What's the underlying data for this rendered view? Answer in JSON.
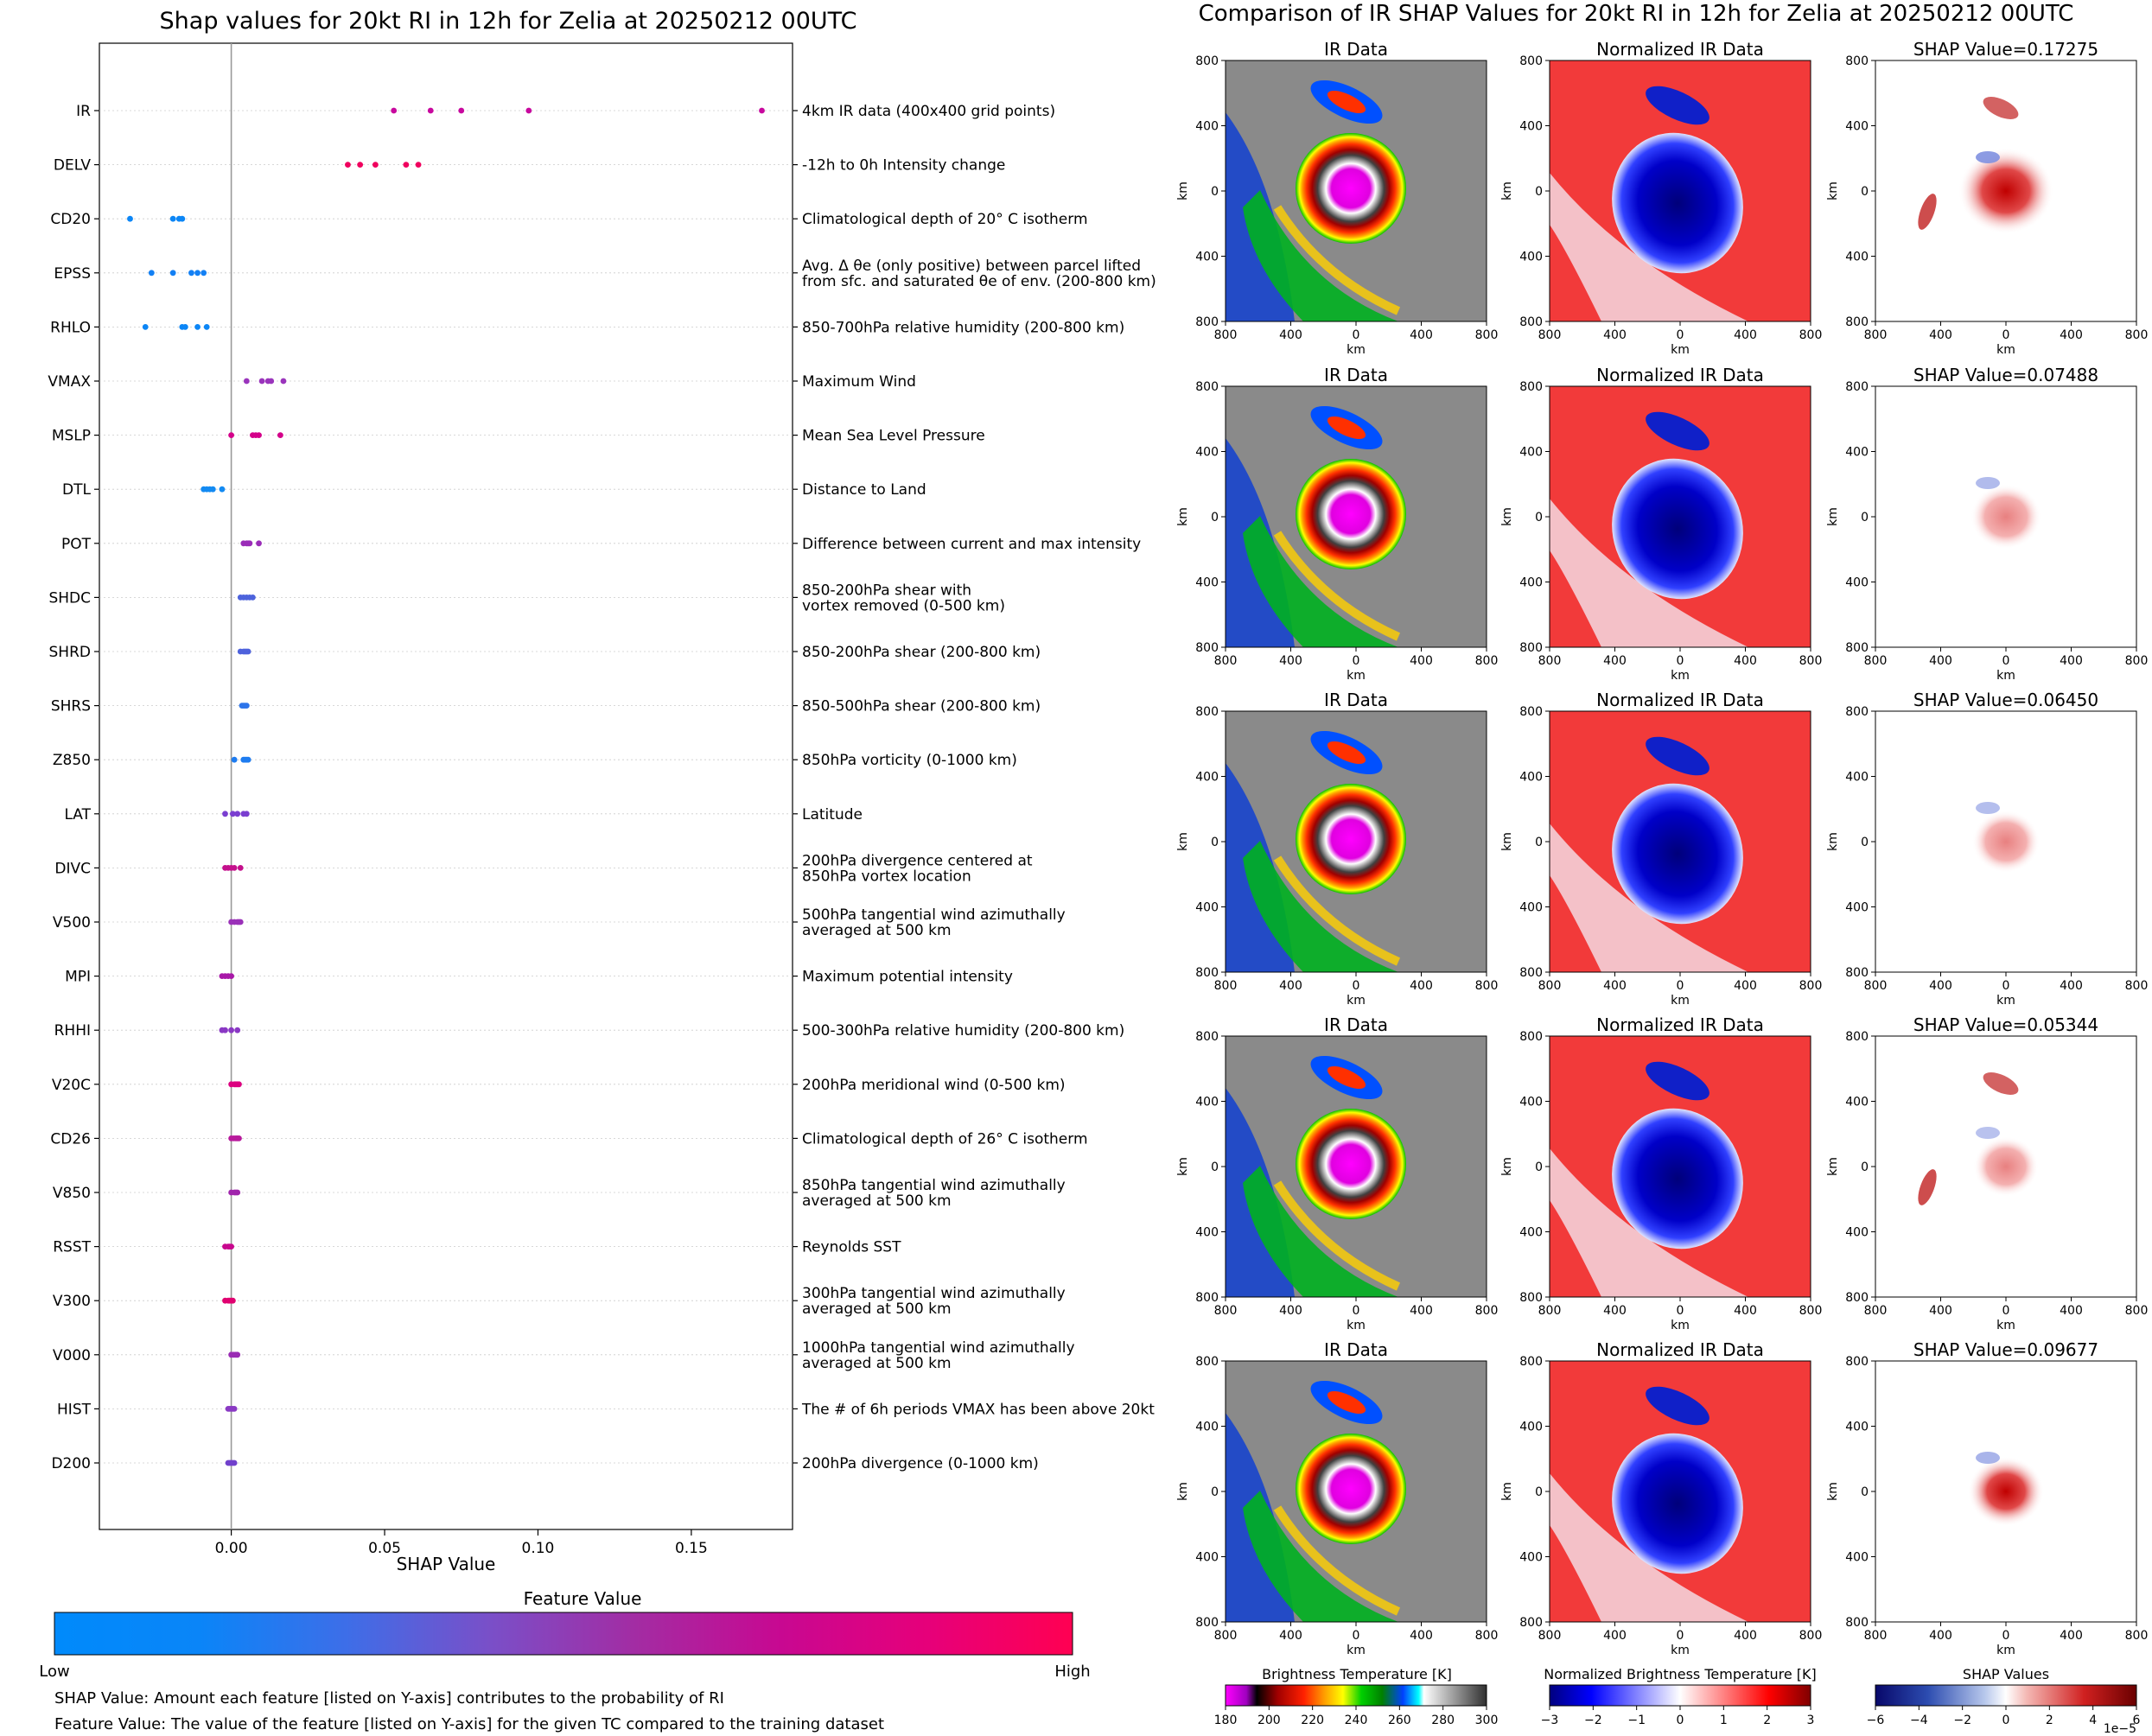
{
  "left_panel": {
    "title": "Shap values for 20kt RI in 12h for Zelia at 20250212 00UTC",
    "xlabel": "SHAP Value",
    "colorbar_title": "Feature Value",
    "colorbar_low": "Low",
    "colorbar_high": "High",
    "colorbar_colors": [
      "#008afb",
      "#0a85f8",
      "#3d6ee8",
      "#7a4fc8",
      "#a32ca3",
      "#c80891",
      "#e6007a",
      "#ff0052"
    ],
    "note_1": "SHAP Value: Amount each feature [listed on Y-axis] contributes to the probability of RI",
    "note_2": "Feature Value: The value of the feature [listed on Y-axis] for the given TC compared to the training dataset"
  },
  "chart_data": [
    {
      "type": "scatter",
      "subtype": "shap-beeswarm",
      "title": "Shap values for 20kt RI in 12h for Zelia at 20250212 00UTC",
      "xlabel": "SHAP Value",
      "xlim": [
        -0.043,
        0.183
      ],
      "xticks": [
        0.0,
        0.05,
        0.1,
        0.15
      ],
      "xtick_labels": [
        "0.00",
        "0.05",
        "0.10",
        "0.15"
      ],
      "features": [
        {
          "name": "IR",
          "description": "4km IR data (400x400 grid points)",
          "values": [
            0.053,
            0.065,
            0.075,
            0.097,
            0.173
          ],
          "color": "#c8089e"
        },
        {
          "name": "DELV",
          "description": "-12h to 0h Intensity change",
          "values": [
            0.038,
            0.042,
            0.047,
            0.057,
            0.061
          ],
          "color": "#f0005e"
        },
        {
          "name": "CD20",
          "description": "Climatological depth of 20° C isotherm",
          "values": [
            -0.033,
            -0.019,
            -0.017,
            -0.016
          ],
          "color": "#0c86f6"
        },
        {
          "name": "EPSS",
          "description_line1": "Avg. Δ θe (only positive) between parcel lifted",
          "description_line2": "from sfc. and saturated θe of env. (200-800 km)",
          "values": [
            -0.026,
            -0.019,
            -0.013,
            -0.011,
            -0.009
          ],
          "color": "#1380f4"
        },
        {
          "name": "RHLO",
          "description": "850-700hPa relative humidity (200-800 km)",
          "values": [
            -0.028,
            -0.016,
            -0.015,
            -0.011,
            -0.008
          ],
          "color": "#0c86f6"
        },
        {
          "name": "VMAX",
          "description": "Maximum Wind",
          "values": [
            0.005,
            0.01,
            0.012,
            0.013,
            0.017
          ],
          "color": "#9a34bc"
        },
        {
          "name": "MSLP",
          "description": "Mean Sea Level Pressure",
          "values": [
            0.0,
            0.007,
            0.008,
            0.009,
            0.016
          ],
          "color": "#d4008a"
        },
        {
          "name": "DTL",
          "description": "Distance to Land",
          "values": [
            -0.009,
            -0.008,
            -0.007,
            -0.006,
            -0.003
          ],
          "color": "#138af2"
        },
        {
          "name": "POT",
          "description": "Difference between current and max intensity",
          "values": [
            0.004,
            0.005,
            0.0055,
            0.006,
            0.009
          ],
          "color": "#9a2cb8"
        },
        {
          "name": "SHDC",
          "description_line1": "850-200hPa shear with",
          "description_line2": "vortex removed (0-500 km)",
          "values": [
            0.003,
            0.004,
            0.005,
            0.006,
            0.007
          ],
          "color": "#4d63dc"
        },
        {
          "name": "SHRD",
          "description": "850-200hPa shear (200-800 km)",
          "values": [
            0.003,
            0.004,
            0.0045,
            0.005,
            0.0055
          ],
          "color": "#4e62dc"
        },
        {
          "name": "SHRS",
          "description": "850-500hPa shear (200-800 km)",
          "values": [
            0.0035,
            0.004,
            0.0045,
            0.005
          ],
          "color": "#2d74ea"
        },
        {
          "name": "Z850",
          "description": "850hPa vorticity (0-1000 km)",
          "values": [
            0.001,
            0.004,
            0.0045,
            0.005,
            0.0055
          ],
          "color": "#1e7cf0"
        },
        {
          "name": "LAT",
          "description": "Latitude",
          "values": [
            -0.002,
            0.0005,
            0.002,
            0.004,
            0.005
          ],
          "color": "#7a3ed0"
        },
        {
          "name": "DIVC",
          "description_line1": "200hPa divergence centered at",
          "description_line2": "850hPa vortex location",
          "values": [
            -0.002,
            -0.001,
            0.0,
            0.001,
            0.003
          ],
          "color": "#c4108c"
        },
        {
          "name": "V500",
          "description_line1": "500hPa tangential wind azimuthally",
          "description_line2": "averaged at 500 km",
          "values": [
            0.0,
            0.001,
            0.002,
            0.0025,
            0.003
          ],
          "color": "#9a30b8"
        },
        {
          "name": "MPI",
          "description": "Maximum potential intensity",
          "values": [
            -0.003,
            -0.002,
            -0.001,
            0.0
          ],
          "color": "#a818a8"
        },
        {
          "name": "RHHI",
          "description": "500-300hPa relative humidity (200-800 km)",
          "values": [
            -0.003,
            -0.002,
            0.0,
            0.002
          ],
          "color": "#8a38c4"
        },
        {
          "name": "V20C",
          "description": "200hPa meridional wind (0-500 km)",
          "values": [
            0.0,
            0.001,
            0.0015,
            0.002,
            0.0025
          ],
          "color": "#dc0080"
        },
        {
          "name": "CD26",
          "description": "Climatological depth of 26° C isotherm",
          "values": [
            0.0,
            0.0008,
            0.0015,
            0.002,
            0.0025
          ],
          "color": "#b81a9c"
        },
        {
          "name": "V850",
          "description_line1": "850hPa tangential wind azimuthally",
          "description_line2": "averaged at 500 km",
          "values": [
            0.0,
            0.001,
            0.0015,
            0.002
          ],
          "color": "#a024ac"
        },
        {
          "name": "RSST",
          "description": "Reynolds SST",
          "values": [
            -0.002,
            -0.001,
            -0.0005,
            0.0
          ],
          "color": "#c8088e"
        },
        {
          "name": "V300",
          "description_line1": "300hPa tangential wind azimuthally",
          "description_line2": "averaged at 500 km",
          "values": [
            -0.002,
            -0.001,
            -0.0005,
            0.0,
            0.0005
          ],
          "color": "#e00070"
        },
        {
          "name": "V000",
          "description_line1": "1000hPa tangential wind azimuthally",
          "description_line2": "averaged at 500 km",
          "values": [
            0.0,
            0.0008,
            0.0015,
            0.002
          ],
          "color": "#9a2cb4"
        },
        {
          "name": "HIST",
          "description": "The # of 6h periods VMAX has been above 20kt",
          "values": [
            -0.001,
            -0.0005,
            0.0,
            0.0005,
            0.001
          ],
          "color": "#8a3ac4"
        },
        {
          "name": "D200",
          "description": "200hPa divergence (0-1000 km)",
          "values": [
            -0.001,
            -0.0005,
            0.0,
            0.0005,
            0.001
          ],
          "color": "#7040cc"
        }
      ]
    },
    {
      "type": "heatmap",
      "title": "Comparison of IR SHAP Values for 20kt RI in 12h for Zelia at 20250212 00UTC",
      "rows": [
        {
          "ir_title": "IR Data",
          "norm_title": "Normalized IR Data",
          "shap_title": "SHAP Value=0.17275",
          "shap_value": 0.17275
        },
        {
          "ir_title": "IR Data",
          "norm_title": "Normalized IR Data",
          "shap_title": "SHAP Value=0.07488",
          "shap_value": 0.07488
        },
        {
          "ir_title": "IR Data",
          "norm_title": "Normalized IR Data",
          "shap_title": "SHAP Value=0.06450",
          "shap_value": 0.0645
        },
        {
          "ir_title": "IR Data",
          "norm_title": "Normalized IR Data",
          "shap_title": "SHAP Value=0.05344",
          "shap_value": 0.05344
        },
        {
          "ir_title": "IR Data",
          "norm_title": "Normalized IR Data",
          "shap_title": "SHAP Value=0.09677",
          "shap_value": 0.09677
        }
      ],
      "axis_ticks": [
        "800",
        "400",
        "0",
        "400",
        "800"
      ],
      "xlabel": "km",
      "ylabel": "km",
      "colorbars": [
        {
          "label": "Brightness Temperature [K]",
          "ticks": [
            "180",
            "200",
            "220",
            "240",
            "260",
            "280",
            "300"
          ]
        },
        {
          "label": "Normalized Brightness Temperature [K]",
          "ticks": [
            "−3",
            "−2",
            "−1",
            "0",
            "1",
            "2",
            "3"
          ]
        },
        {
          "label": "SHAP Values",
          "ticks": [
            "−6",
            "−4",
            "−2",
            "0",
            "2",
            "4",
            "6"
          ],
          "offset": "1e−5"
        }
      ]
    }
  ]
}
